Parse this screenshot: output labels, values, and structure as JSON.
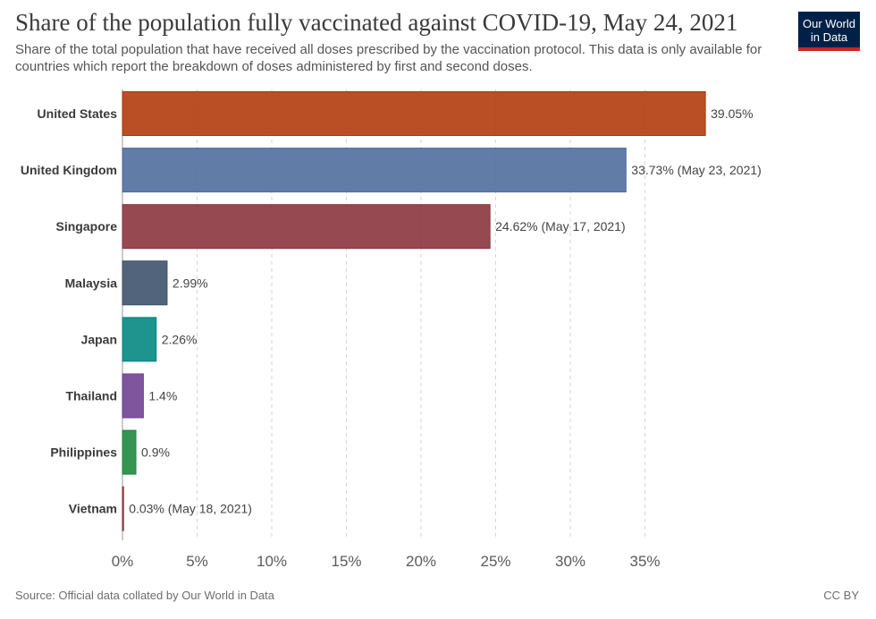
{
  "header": {
    "title": "Share of the population fully vaccinated against COVID-19, May 24, 2021",
    "subtitle": "Share of the total population that have received all doses prescribed by the vaccination protocol. This data is only available for countries which report the breakdown of doses administered by first and second doses."
  },
  "logo": {
    "line1": "Our World",
    "line2": "in Data"
  },
  "footer": {
    "source": "Source: Official data collated by Our World in Data",
    "license": "CC BY"
  },
  "chart_data": {
    "type": "bar",
    "orientation": "horizontal",
    "title": "Share of the population fully vaccinated against COVID-19, May 24, 2021",
    "xlabel": "",
    "ylabel": "",
    "xlim": [
      0,
      40
    ],
    "x_ticks": [
      0,
      5,
      10,
      15,
      20,
      25,
      30,
      35
    ],
    "x_tick_labels": [
      "0%",
      "5%",
      "10%",
      "15%",
      "20%",
      "25%",
      "30%",
      "35%"
    ],
    "grid": "vertical dashed",
    "categories": [
      "United States",
      "United Kingdom",
      "Singapore",
      "Malaysia",
      "Japan",
      "Thailand",
      "Philippines",
      "Vietnam"
    ],
    "values": [
      39.05,
      33.73,
      24.62,
      2.99,
      2.26,
      1.4,
      0.9,
      0.03
    ],
    "value_labels": [
      "39.05%",
      "33.73% (May 23, 2021)",
      "24.62% (May 17, 2021)",
      "2.99%",
      "2.26%",
      "1.4%",
      "0.9%",
      "0.03% (May 18, 2021)"
    ],
    "colors": [
      "#b13507",
      "#4c6a9c",
      "#883039",
      "#3a4e69",
      "#00847e",
      "#6d3e91",
      "#18863b",
      "#883039"
    ]
  }
}
